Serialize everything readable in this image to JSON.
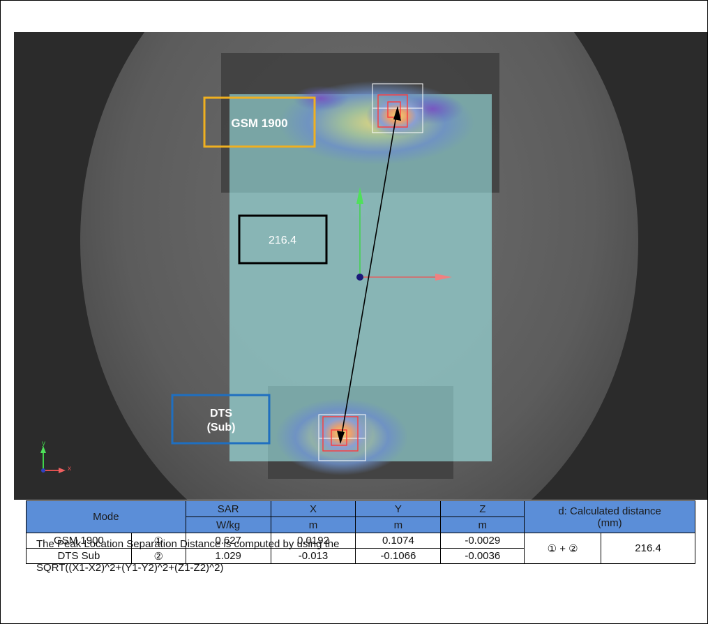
{
  "viewport": {
    "labels": {
      "gsm": "GSM 1900",
      "distance": "216.4",
      "dts_line1": "DTS",
      "dts_line2": "(Sub)"
    },
    "axis_labels": {
      "x": "x",
      "y": "y"
    },
    "colors": {
      "gsm_box": "#f0b020",
      "dts_box": "#1f6fc0",
      "distance_box": "#000000",
      "phantom_fill": "#8bbcbc",
      "arrow": "#000000"
    }
  },
  "table": {
    "headers": {
      "mode": "Mode",
      "sar": "SAR",
      "sar_unit": "W/kg",
      "x": "X",
      "x_unit": "m",
      "y": "Y",
      "y_unit": "m",
      "z": "Z",
      "z_unit": "m",
      "distance_line1": "d: Calculated distance",
      "distance_line2": "(mm)"
    },
    "rows": [
      {
        "mode": "GSM 1900",
        "index": "①",
        "sar": "0.627",
        "x": "0.0192",
        "y": "0.1074",
        "z": "-0.0029"
      },
      {
        "mode": "DTS Sub",
        "index": "②",
        "sar": "1.029",
        "x": "-0.013",
        "y": "-0.1066",
        "z": "-0.0036"
      }
    ],
    "combo": "① + ②",
    "distance": "216.4"
  },
  "notes": {
    "line1": "The Peak Location Separation Distance is computed by using the",
    "line2": "SQRT((X1-X2)^2+(Y1-Y2)^2+(Z1-Z2)^2)"
  }
}
